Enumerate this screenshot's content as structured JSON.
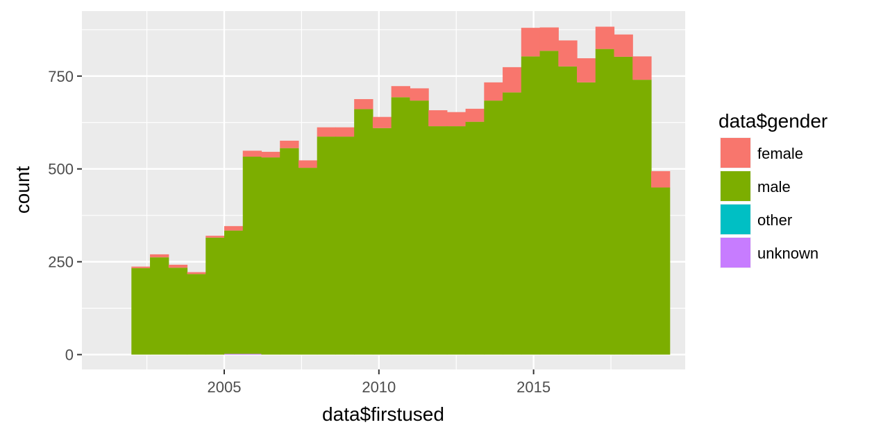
{
  "chart_data": {
    "type": "bar",
    "stacked": true,
    "histogram": true,
    "xlabel": "data$firstused",
    "ylabel": "count",
    "xlim": [
      2000.4,
      2019.9
    ],
    "ylim": [
      -40,
      925
    ],
    "x_ticks": [
      2005,
      2010,
      2015
    ],
    "y_ticks": [
      0,
      250,
      500,
      750
    ],
    "grid": true,
    "legend": {
      "title": "data$gender",
      "position": "right"
    },
    "bin_width": 0.6,
    "bin_edges": [
      2002.0,
      2002.6,
      2003.2,
      2003.8,
      2004.4,
      2005.0,
      2005.6,
      2006.2,
      2006.8,
      2007.4,
      2008.0,
      2008.6,
      2009.2,
      2009.8,
      2010.4,
      2011.0,
      2011.6,
      2012.2,
      2012.8,
      2013.4,
      2014.0,
      2014.6,
      2015.2,
      2015.8,
      2016.4,
      2017.0,
      2017.6,
      2018.2,
      2018.8
    ],
    "series": [
      {
        "name": "female",
        "color": "#F8766D",
        "values": [
          4,
          8,
          8,
          5,
          5,
          12,
          16,
          15,
          20,
          20,
          25,
          25,
          27,
          30,
          30,
          33,
          43,
          38,
          35,
          49,
          68,
          77,
          63,
          70,
          65,
          60,
          60,
          63,
          44
        ]
      },
      {
        "name": "male",
        "color": "#7CAE00",
        "values": [
          233,
          262,
          234,
          217,
          315,
          332,
          531,
          531,
          556,
          503,
          587,
          587,
          661,
          610,
          693,
          684,
          615,
          615,
          627,
          684,
          706,
          803,
          818,
          776,
          733,
          823,
          802,
          740,
          450
        ]
      },
      {
        "name": "other",
        "color": "#00BFC4",
        "values": [
          0,
          0,
          0,
          0,
          0,
          0,
          0,
          0,
          0,
          0,
          0,
          0,
          0,
          0,
          0,
          0,
          0,
          0,
          0,
          0,
          0,
          0,
          0,
          0,
          0,
          0,
          0,
          0,
          0
        ]
      },
      {
        "name": "unknown",
        "color": "#C77CFF",
        "values": [
          0,
          0,
          0,
          0,
          0,
          2,
          2,
          0,
          0,
          0,
          0,
          0,
          0,
          0,
          0,
          0,
          0,
          0,
          0,
          0,
          0,
          0,
          0,
          0,
          0,
          0,
          0,
          0,
          0
        ]
      }
    ]
  }
}
